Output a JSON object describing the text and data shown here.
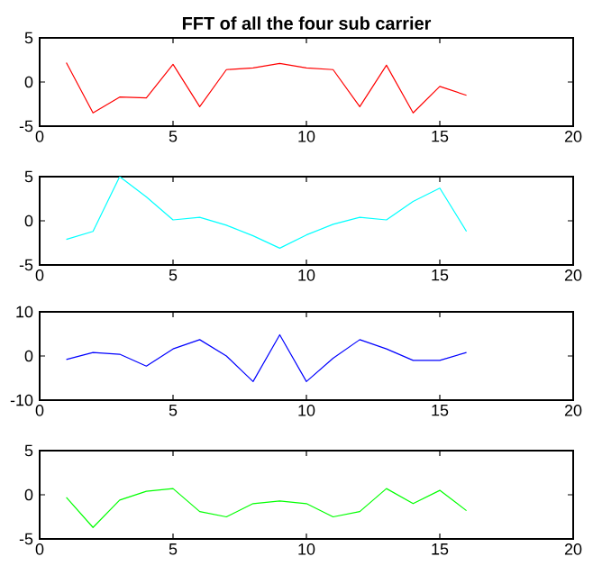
{
  "chart_data": [
    {
      "type": "line",
      "title": "FFT of all the four sub carrier",
      "x": [
        1,
        2,
        3,
        4,
        5,
        6,
        7,
        8,
        9,
        10,
        11,
        12,
        13,
        14,
        15,
        16
      ],
      "xlim": [
        0,
        20
      ],
      "xticks": [
        0,
        5,
        10,
        15,
        20
      ],
      "ylim": [
        -5,
        5
      ],
      "yticks": [
        -5,
        0,
        5
      ],
      "series": [
        {
          "color": "#ff0000",
          "values": [
            2.2,
            -3.5,
            -1.7,
            -1.8,
            2.0,
            -2.8,
            1.4,
            1.6,
            2.1,
            1.6,
            1.4,
            -2.8,
            1.9,
            -3.5,
            -0.5,
            -1.5
          ]
        }
      ]
    },
    {
      "type": "line",
      "x": [
        1,
        2,
        3,
        4,
        5,
        6,
        7,
        8,
        9,
        10,
        11,
        12,
        13,
        14,
        15,
        16
      ],
      "xlim": [
        0,
        20
      ],
      "xticks": [
        0,
        5,
        10,
        15,
        20
      ],
      "ylim": [
        -5,
        5
      ],
      "yticks": [
        -5,
        0,
        5
      ],
      "series": [
        {
          "color": "#00ffff",
          "values": [
            -2.1,
            -1.2,
            5.0,
            2.7,
            0.1,
            0.4,
            -0.5,
            -1.7,
            -3.1,
            -1.6,
            -0.4,
            0.4,
            0.1,
            2.2,
            3.7,
            -1.2
          ]
        }
      ]
    },
    {
      "type": "line",
      "x": [
        1,
        2,
        3,
        4,
        5,
        6,
        7,
        8,
        9,
        10,
        11,
        12,
        13,
        14,
        15,
        16
      ],
      "xlim": [
        0,
        20
      ],
      "xticks": [
        0,
        5,
        10,
        15,
        20
      ],
      "ylim": [
        -10,
        10
      ],
      "yticks": [
        -10,
        0,
        10
      ],
      "series": [
        {
          "color": "#0000ff",
          "values": [
            -0.8,
            0.8,
            0.4,
            -2.3,
            1.6,
            3.7,
            0.0,
            -5.8,
            4.8,
            -5.8,
            -0.5,
            3.7,
            1.6,
            -1.0,
            -1.0,
            0.8
          ]
        }
      ]
    },
    {
      "type": "line",
      "x": [
        1,
        2,
        3,
        4,
        5,
        6,
        7,
        8,
        9,
        10,
        11,
        12,
        13,
        14,
        15,
        16
      ],
      "xlim": [
        0,
        20
      ],
      "xticks": [
        0,
        5,
        10,
        15,
        20
      ],
      "ylim": [
        -5,
        5
      ],
      "yticks": [
        -5,
        0,
        5
      ],
      "series": [
        {
          "color": "#00ff00",
          "values": [
            -0.3,
            -3.7,
            -0.6,
            0.4,
            0.7,
            -1.9,
            -2.5,
            -1.0,
            -0.7,
            -1.0,
            -2.5,
            -1.9,
            0.7,
            -1.0,
            0.5,
            -1.8
          ]
        }
      ]
    }
  ]
}
